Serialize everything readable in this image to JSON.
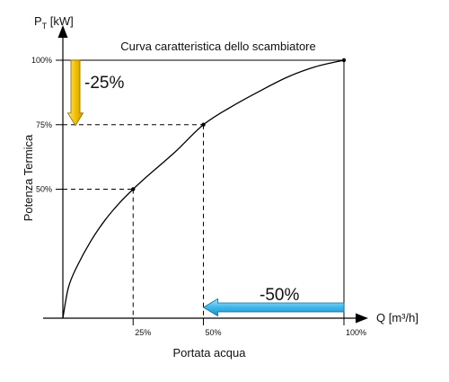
{
  "chart_data": {
    "type": "line",
    "title": "Curva caratteristica dello scambiatore",
    "xlabel": "Portata acqua",
    "ylabel": "Potenza Termica",
    "x_axis_unit": "Q [m³/h]",
    "y_axis_unit_main": "P",
    "y_axis_unit_sub": "T",
    "y_axis_unit_tail": " [kW]",
    "xlim": [
      0,
      100
    ],
    "ylim": [
      0,
      100
    ],
    "x_ticks": [
      {
        "value": 25,
        "label": "25%"
      },
      {
        "value": 50,
        "label": "50%"
      },
      {
        "value": 100,
        "label": "100%"
      }
    ],
    "y_ticks": [
      {
        "value": 50,
        "label": "50%"
      },
      {
        "value": 75,
        "label": "75%"
      },
      {
        "value": 100,
        "label": "100%"
      }
    ],
    "series": [
      {
        "x": [
          0,
          2,
          5,
          10,
          15,
          20,
          25,
          30,
          40,
          50,
          60,
          70,
          80,
          90,
          100
        ],
        "y": [
          0,
          12,
          20,
          30,
          38,
          44.5,
          50,
          55,
          64.5,
          75,
          82,
          88,
          93.5,
          97.5,
          100
        ]
      }
    ],
    "marked_points": [
      {
        "x": 25,
        "y": 50
      },
      {
        "x": 50,
        "y": 75
      },
      {
        "x": 100,
        "y": 100
      }
    ],
    "annotations": [
      {
        "text": "-25%",
        "color": "#F2C100",
        "from_y": 100,
        "to_y": 75
      },
      {
        "text": "-50%",
        "color": "#29ABE2",
        "from_x": 100,
        "to_x": 50
      }
    ],
    "grid": false,
    "legend": "none"
  }
}
